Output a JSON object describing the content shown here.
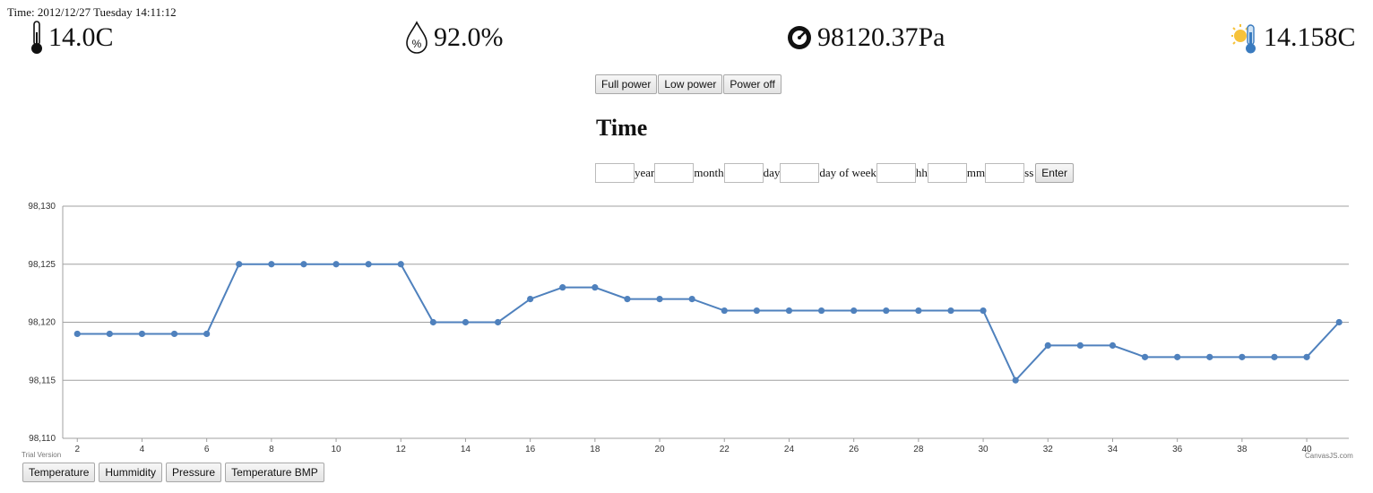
{
  "header": {
    "time_text": "Time: 2012/12/27 Tuesday 14:11:12"
  },
  "sensors": {
    "temperature": {
      "value": "14.0C",
      "icon": "thermometer-icon"
    },
    "humidity": {
      "value": "92.0%",
      "icon": "humidity-drop-icon"
    },
    "pressure": {
      "value": "98120.37Pa",
      "icon": "pressure-gauge-icon"
    },
    "temperature_bmp": {
      "value": "14.158C",
      "icon": "sun-thermometer-icon"
    }
  },
  "power": {
    "full": "Full power",
    "low": "Low power",
    "off": "Power off"
  },
  "time_form": {
    "heading": "Time",
    "labels": [
      "year",
      "month",
      "day",
      "day of week",
      "hh",
      "mm",
      "ss"
    ],
    "enter": "Enter"
  },
  "chart_footer": {
    "trial": "Trial Version",
    "credit": "CanvasJS.com"
  },
  "series_buttons": {
    "temperature": "Temperature",
    "humidity": "Hummidity",
    "pressure": "Pressure",
    "temperature_bmp": "Temperature BMP"
  },
  "colors": {
    "line": "#4f81bd",
    "grid": "#a0a0a0"
  },
  "chart_data": {
    "type": "line",
    "x": [
      2,
      3,
      4,
      5,
      6,
      7,
      8,
      9,
      10,
      11,
      12,
      13,
      14,
      15,
      16,
      17,
      18,
      19,
      20,
      21,
      22,
      23,
      24,
      25,
      26,
      27,
      28,
      29,
      30,
      31,
      32,
      33,
      34,
      35,
      36,
      37,
      38,
      39,
      40,
      41
    ],
    "series": [
      {
        "values": [
          98119,
          98119,
          98119,
          98119,
          98119,
          98125,
          98125,
          98125,
          98125,
          98125,
          98125,
          98120,
          98120,
          98120,
          98122,
          98123,
          98123,
          98122,
          98122,
          98122,
          98121,
          98121,
          98121,
          98121,
          98121,
          98121,
          98121,
          98121,
          98121,
          98115,
          98118,
          98118,
          98118,
          98117,
          98117,
          98117,
          98117,
          98117,
          98117,
          98120
        ]
      }
    ],
    "ylim": [
      98110,
      98130
    ],
    "y_ticks": [
      "98,110",
      "98,115",
      "98,120",
      "98,125",
      "98,130"
    ],
    "x_ticks": [
      2,
      4,
      6,
      8,
      10,
      12,
      14,
      16,
      18,
      20,
      22,
      24,
      26,
      28,
      30,
      32,
      34,
      36,
      38,
      40
    ],
    "grid": true
  }
}
